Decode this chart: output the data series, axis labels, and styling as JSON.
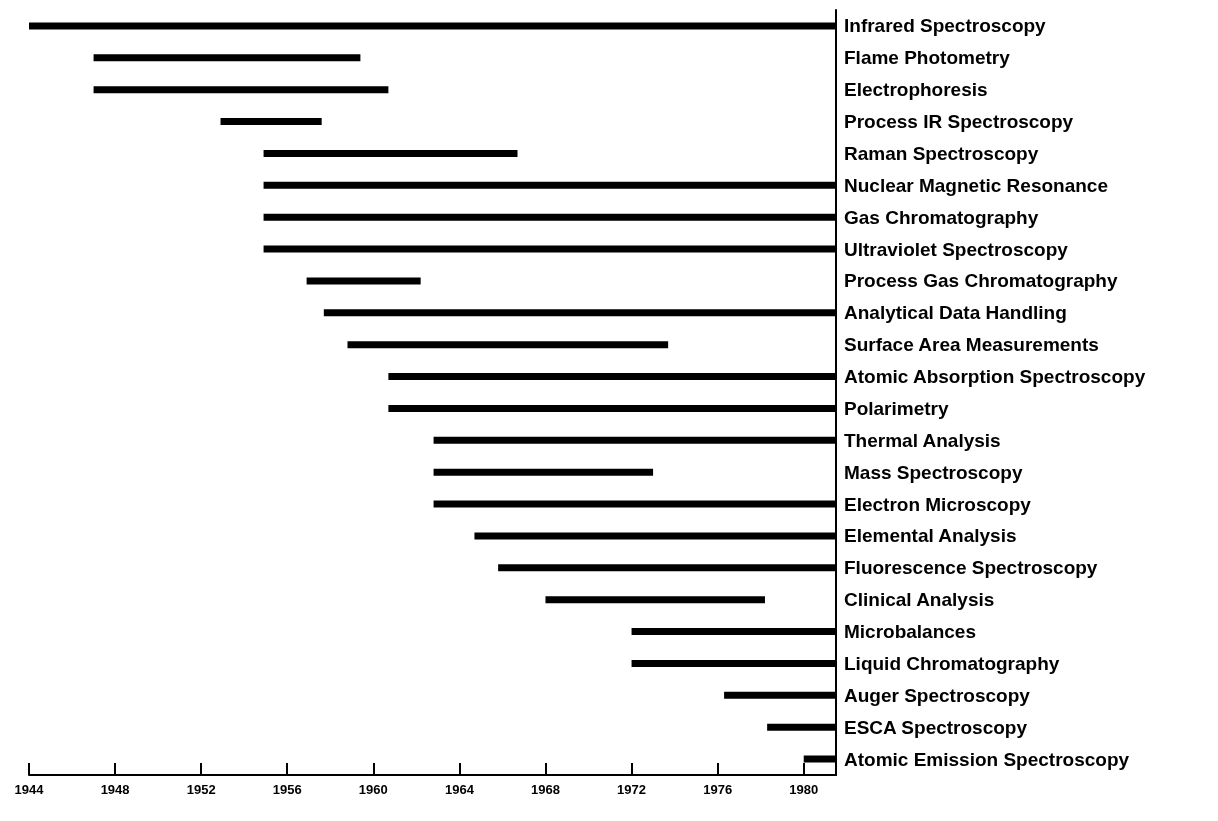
{
  "chart_data": {
    "type": "bar",
    "orientation": "horizontal",
    "color": "#000000",
    "grid": false,
    "categories": [
      "Infrared Spectroscopy",
      "Flame Photometry",
      "Electrophoresis",
      "Process IR Spectroscopy",
      "Raman Spectroscopy",
      "Nuclear Magnetic Resonance",
      "Gas Chromatography",
      "Ultraviolet Spectroscopy",
      "Process Gas Chromatography",
      "Analytical Data Handling",
      "Surface Area Measurements",
      "Atomic Absorption Spectroscopy",
      "Polarimetry",
      "Thermal Analysis",
      "Mass Spectroscopy",
      "Electron Microscopy",
      "Elemental Analysis",
      "Fluorescence Spectroscopy",
      "Clinical Analysis",
      "Microbalances",
      "Liquid Chromatography",
      "Auger Spectroscopy",
      "ESCA Spectroscopy",
      "Atomic Emission Spectroscopy"
    ],
    "base": [
      1944,
      1947,
      1947,
      1952.9,
      1954.9,
      1954.9,
      1954.9,
      1954.9,
      1956.9,
      1957.7,
      1958.8,
      1960.7,
      1960.7,
      1962.8,
      1962.8,
      1962.8,
      1964.7,
      1965.8,
      1968,
      1972,
      1972,
      1976.3,
      1978.3,
      1980
    ],
    "values": [
      37.5,
      12.4,
      13.7,
      4.7,
      11.8,
      26.6,
      26.6,
      26.6,
      5.3,
      23.8,
      14.9,
      20.8,
      20.8,
      18.7,
      10.2,
      18.7,
      16.8,
      15.7,
      10.2,
      9.5,
      9.5,
      5.2,
      3.2,
      1.5
    ],
    "xlim": [
      1944,
      1981.5
    ],
    "xticks": [
      1944,
      1948,
      1952,
      1956,
      1960,
      1964,
      1968,
      1972,
      1976,
      1980
    ]
  }
}
